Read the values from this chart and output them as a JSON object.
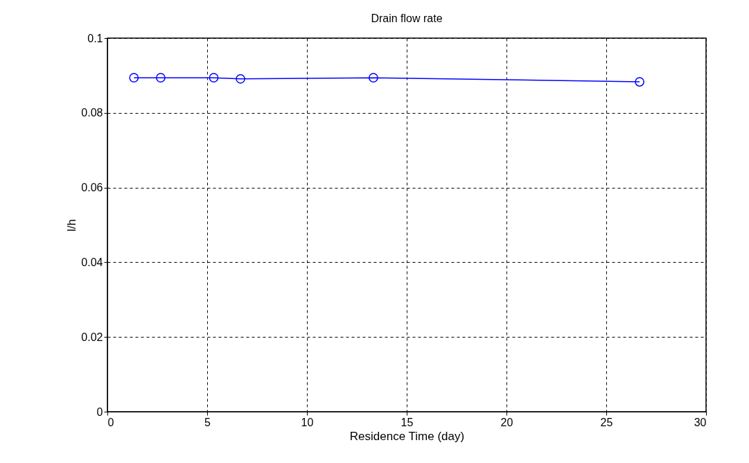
{
  "chart_data": {
    "type": "line",
    "title": "Drain flow rate",
    "xlabel": "Residence Time (day)",
    "ylabel": "l/h",
    "x": [
      1.33,
      2.67,
      5.33,
      6.67,
      13.33,
      26.67
    ],
    "series": [
      {
        "color": "#0000ff",
        "values": [
          0.0894,
          0.0894,
          0.0894,
          0.0891,
          0.0894,
          0.0883
        ]
      }
    ],
    "xlim": [
      0,
      30
    ],
    "xticks": [
      0,
      5,
      10,
      15,
      20,
      25,
      30
    ],
    "ylim": [
      0,
      0.1
    ],
    "yticks": [
      0,
      0.02,
      0.04,
      0.06,
      0.08,
      0.1
    ],
    "grid": true,
    "marker": "circle",
    "line_style": "solid"
  }
}
